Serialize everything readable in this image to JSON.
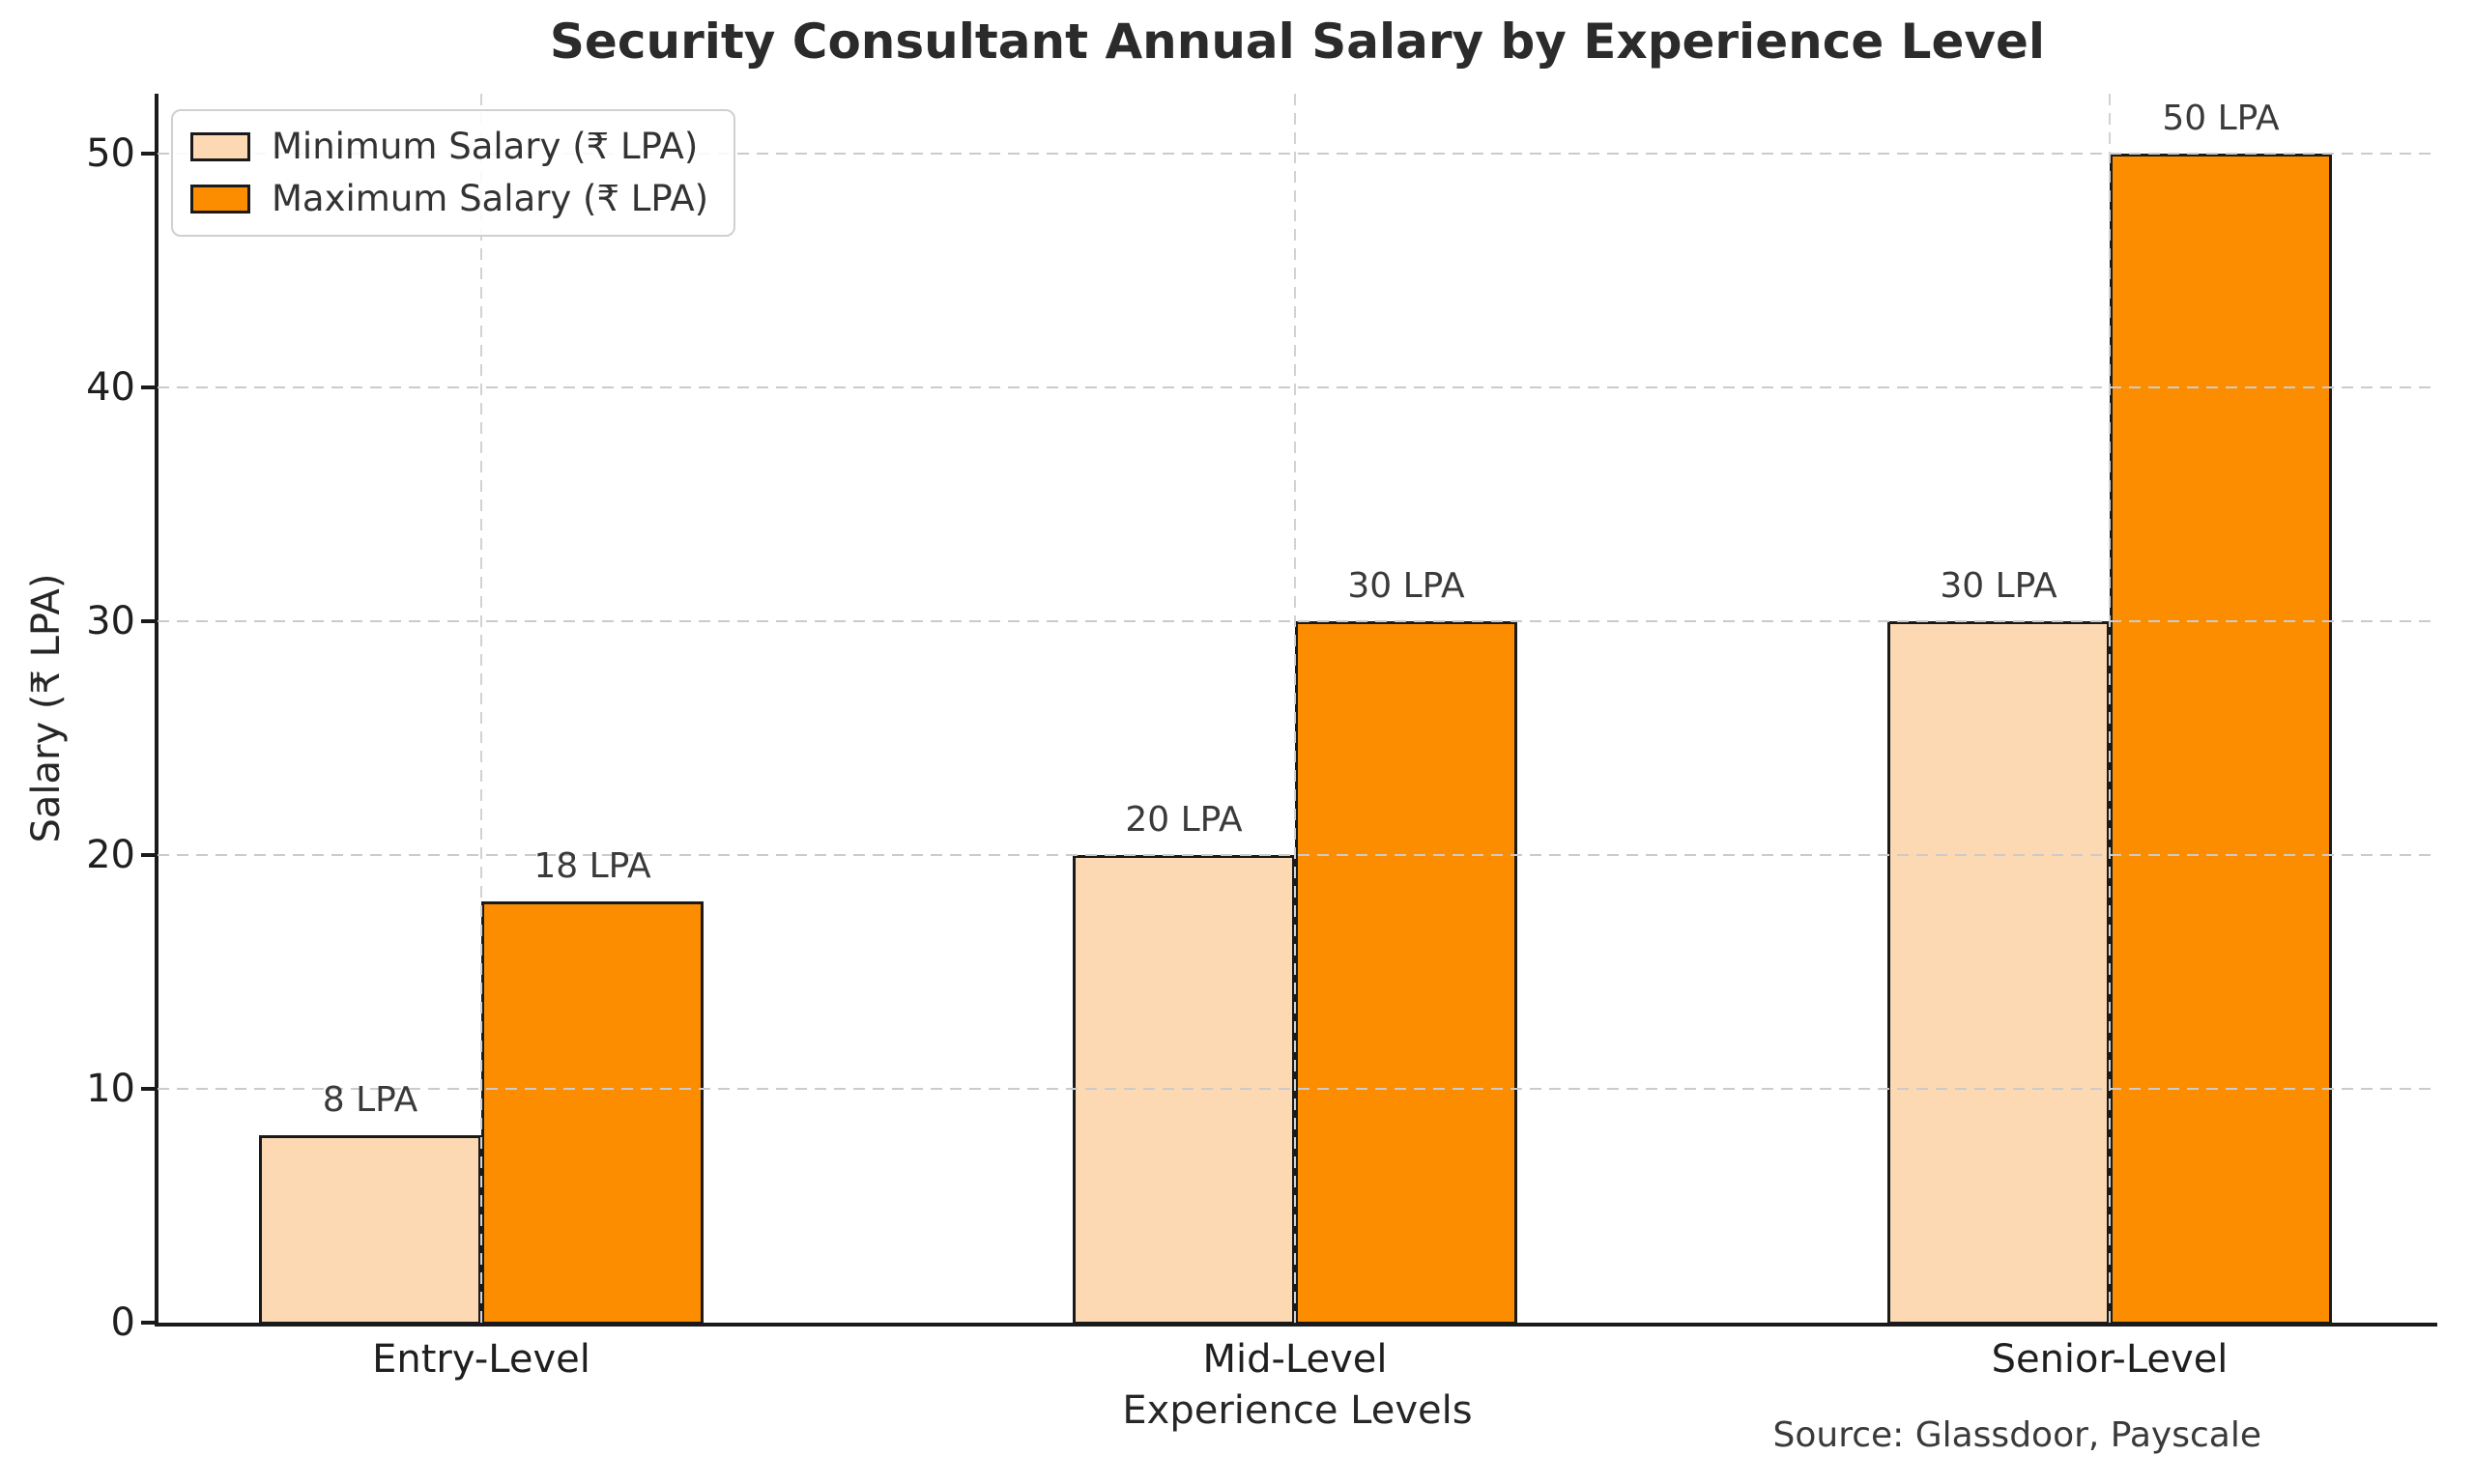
{
  "chart_data": {
    "type": "bar",
    "title": "Security Consultant Annual Salary by Experience Level",
    "xlabel": "Experience Levels",
    "ylabel": "Salary (₹ LPA)",
    "source_note": "Source: Glassdoor, Payscale",
    "categories": [
      "Entry-Level",
      "Mid-Level",
      "Senior-Level"
    ],
    "series": [
      {
        "name": "Minimum Salary (₹ LPA)",
        "values": [
          8,
          20,
          30
        ],
        "bar_labels": [
          "8 LPA",
          "20 LPA",
          "30 LPA"
        ],
        "color": "#FCD9B3"
      },
      {
        "name": "Maximum Salary (₹ LPA)",
        "values": [
          18,
          30,
          50
        ],
        "bar_labels": [
          "18 LPA",
          "30 LPA",
          "50 LPA"
        ],
        "color": "#FC8D00"
      }
    ],
    "bar_edge_color": "#1a1a1a",
    "ylim": [
      0,
      52.5
    ],
    "yticks": [
      0,
      10,
      20,
      30,
      40,
      50
    ],
    "grid": true,
    "grid_style": "dashed",
    "grid_color": "#cbcbcb",
    "legend_position": "upper left"
  }
}
